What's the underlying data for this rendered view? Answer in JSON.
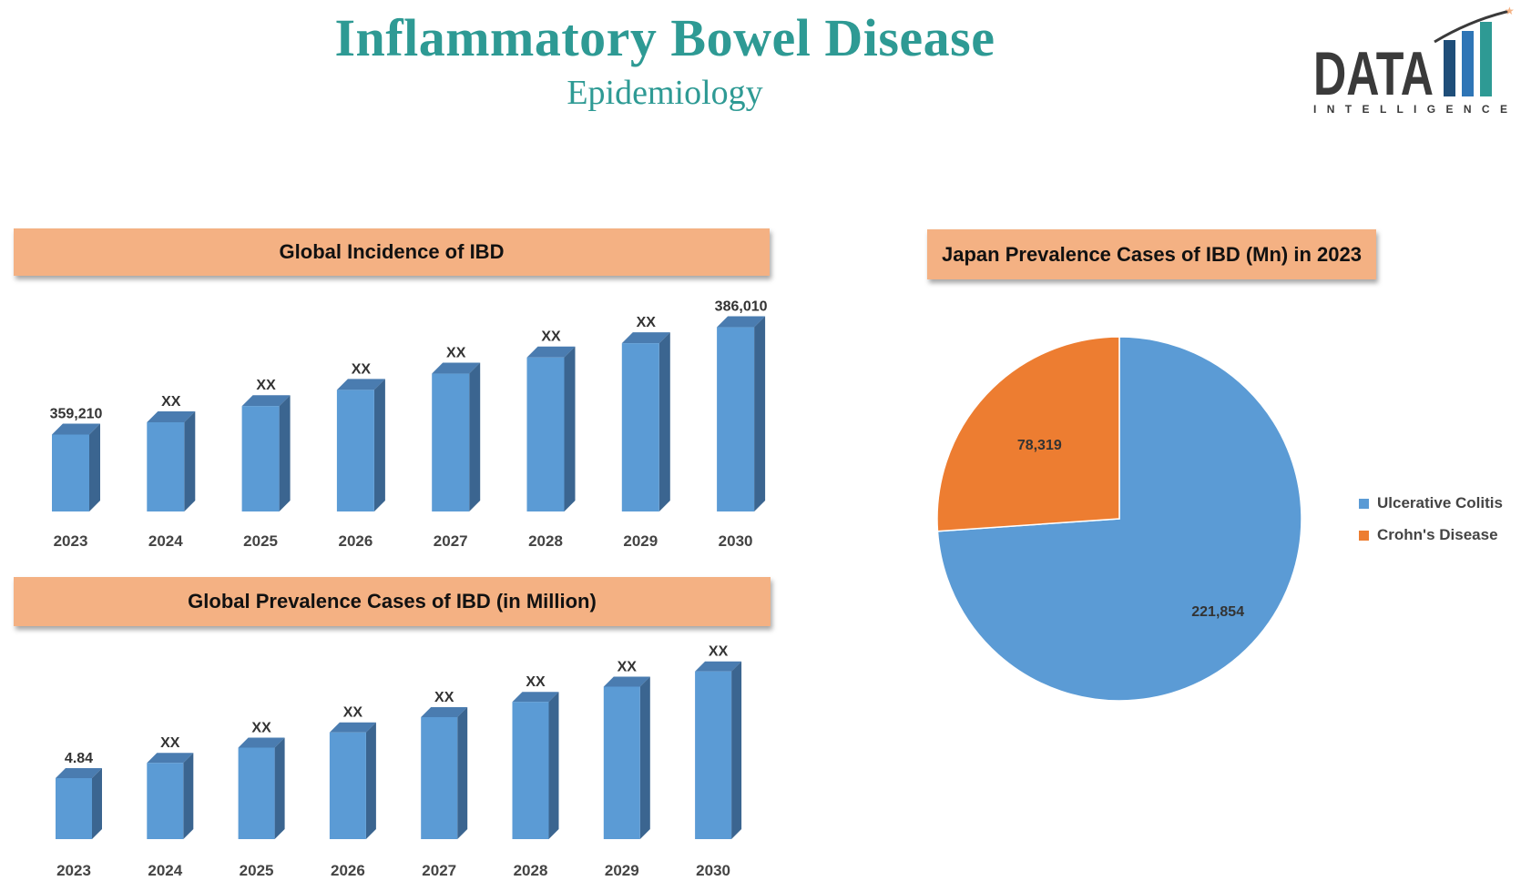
{
  "header": {
    "title": "Inflammatory Bowel Disease",
    "subtitle": "Epidemiology"
  },
  "logo": {
    "word": "DATA",
    "tagline": "I N T E L L I G E N C E",
    "colors": {
      "text": "#3a3a3a",
      "bar_dark": "#1f4e79",
      "bar_mid": "#2e75b6",
      "bar_teal": "#2e9a94",
      "star": "#f4b183"
    }
  },
  "colors": {
    "bar_front": "#5b9bd5",
    "bar_side": "#3b6590",
    "bar_top": "#4a7cb0",
    "banner": "#f4b183",
    "title": "#2e9a94",
    "ulcerative": "#5b9bd5",
    "crohns": "#ed7d31"
  },
  "chart_data": [
    {
      "type": "bar",
      "title": "Global Incidence of IBD",
      "categories": [
        "2023",
        "2024",
        "2025",
        "2026",
        "2027",
        "2028",
        "2029",
        "2030"
      ],
      "values": [
        359210,
        362270,
        366320,
        370370,
        374420,
        378470,
        382020,
        386010
      ],
      "data_labels": [
        "359,210",
        "XX",
        "XX",
        "XX",
        "XX",
        "XX",
        "XX",
        "386,010"
      ],
      "ylim": [
        340000,
        390000
      ],
      "xlabel": "",
      "ylabel": "",
      "grid": false
    },
    {
      "type": "bar",
      "title": "Global Prevalence Cases of IBD (in Million)",
      "categories": [
        "2023",
        "2024",
        "2025",
        "2026",
        "2027",
        "2028",
        "2029",
        "2030"
      ],
      "values": [
        4.84,
        4.95,
        5.06,
        5.17,
        5.28,
        5.39,
        5.5,
        5.61
      ],
      "data_labels": [
        "4.84",
        "XX",
        "XX",
        "XX",
        "XX",
        "XX",
        "XX",
        "XX"
      ],
      "ylim": [
        4.4,
        5.7
      ],
      "xlabel": "",
      "ylabel": "",
      "grid": false
    },
    {
      "type": "pie",
      "title": "Japan Prevalence Cases of IBD (Mn) in 2023",
      "categories": [
        "Ulcerative Colitis",
        "Crohn's Disease"
      ],
      "values": [
        221854,
        78319
      ],
      "data_labels": [
        "221,854",
        "78,319"
      ],
      "legend": "right"
    }
  ]
}
